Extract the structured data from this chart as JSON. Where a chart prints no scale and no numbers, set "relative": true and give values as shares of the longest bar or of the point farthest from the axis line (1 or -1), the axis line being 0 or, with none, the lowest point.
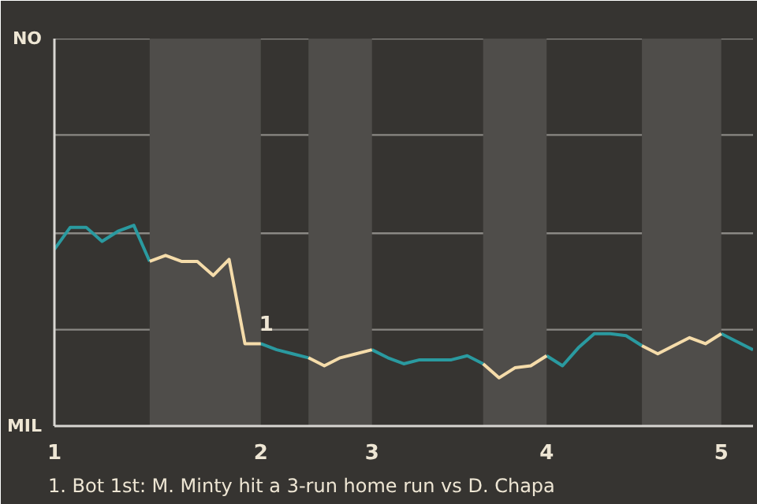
{
  "chart_data": {
    "type": "line",
    "relative": true,
    "categories": [
      "1",
      null,
      null,
      null,
      null,
      null,
      null,
      null,
      null,
      null,
      null,
      null,
      null,
      "2",
      null,
      null,
      null,
      null,
      null,
      null,
      "3",
      null,
      null,
      null,
      null,
      null,
      null,
      null,
      null,
      null,
      null,
      "4",
      null,
      null,
      null,
      null,
      null,
      null,
      null,
      null,
      null,
      null,
      "5",
      null,
      null
    ],
    "series": [
      {
        "color": "#2a9aa0",
        "values": [
          0.88,
          0.99,
          0.99,
          0.92,
          0.97,
          1,
          0.82,
          null,
          null,
          null,
          null,
          null,
          null,
          0.41,
          0.38,
          0.36,
          0.34,
          null,
          null,
          null,
          0.38,
          0.34,
          0.31,
          0.33,
          0.33,
          0.33,
          0.35,
          0.31,
          null,
          null,
          null,
          0.35,
          0.3,
          0.39,
          0.46,
          0.46,
          0.45,
          0.4,
          null,
          null,
          null,
          null,
          0.46,
          0.42,
          0.38
        ]
      },
      {
        "color": "#f5dcaa",
        "values": [
          null,
          null,
          null,
          null,
          null,
          null,
          0.82,
          0.85,
          0.82,
          0.82,
          0.75,
          0.83,
          0.41,
          0.41,
          null,
          null,
          0.34,
          0.3,
          0.34,
          0.36,
          0.38,
          null,
          null,
          null,
          null,
          null,
          null,
          0.31,
          0.24,
          0.29,
          0.3,
          0.35,
          null,
          null,
          null,
          null,
          null,
          0.4,
          0.36,
          0.4,
          0.44,
          0.41,
          0.46,
          null,
          null
        ]
      }
    ],
    "ref_lines": [
      {
        "axis": "y",
        "value": 0.48
      },
      {
        "axis": "y",
        "value": 0.96
      },
      {
        "axis": "y",
        "value": 1.45
      },
      {
        "axis": "y",
        "value": 1.93
      }
    ],
    "annotations": [
      "NO",
      "MIL",
      {
        "text": "1",
        "y": 0.41
      },
      "1. Bot 1st: M. Minty hit a 3-run home run vs D. Chapa"
    ]
  }
}
